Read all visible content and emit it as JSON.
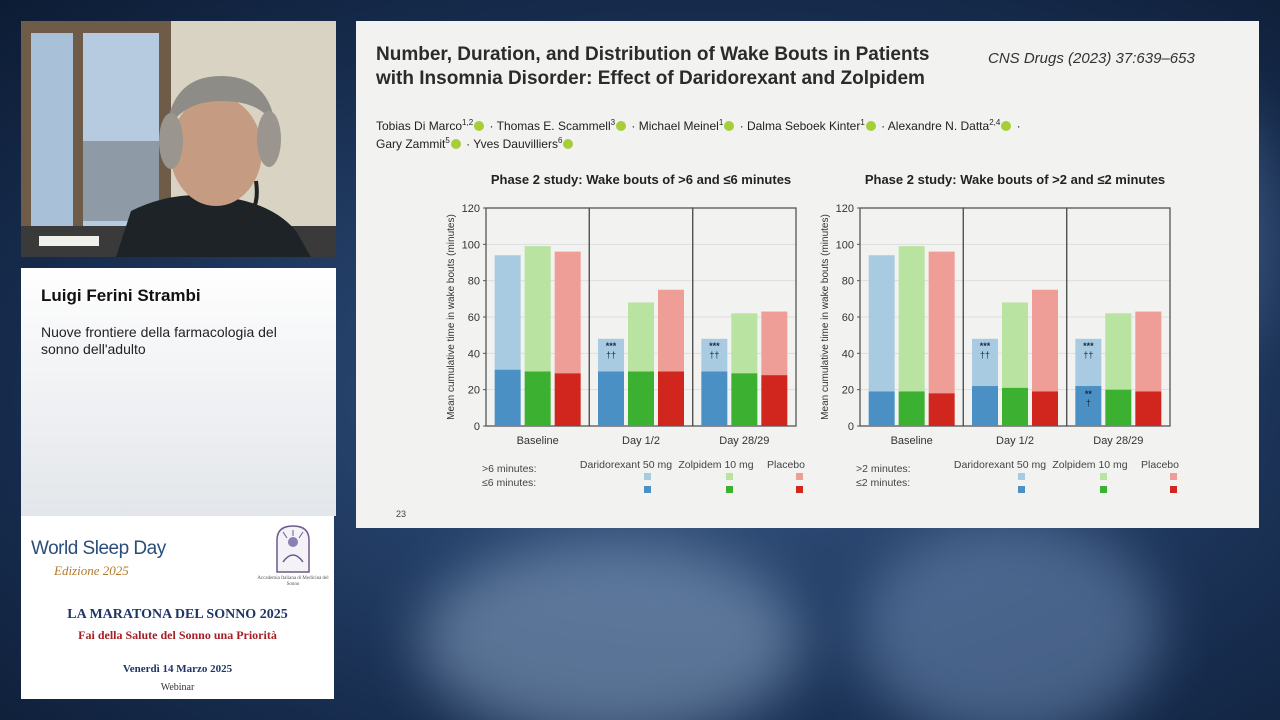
{
  "speaker": {
    "name": "Luigi Ferini Strambi",
    "talk_title": "Nuove frontiere della farmacologia del sonno dell'adulto"
  },
  "event": {
    "logo_text": "World Sleep Day",
    "edition": "Edizione 2025",
    "org_name": "Accademia Italiana di Medicina del Sonno",
    "title": "LA MARATONA DEL SONNO 2025",
    "subtitle": "Fai della Salute del Sonno una Priorità",
    "date": "Venerdì 14 Marzo 2025",
    "format": "Webinar"
  },
  "slide": {
    "title": "Number, Duration, and Distribution of Wake Bouts in Patients with Insomnia Disorder: Effect of Daridorexant and Zolpidem",
    "journal": "CNS Drugs (2023) 37:639–653",
    "authors_line1": [
      {
        "name": "Tobias Di Marco",
        "sup": "1,2"
      },
      {
        "name": "Thomas E. Scammell",
        "sup": "3"
      },
      {
        "name": "Michael Meinel",
        "sup": "1"
      },
      {
        "name": "Dalma Seboek Kinter",
        "sup": "1"
      },
      {
        "name": "Alexandre N. Datta",
        "sup": "2,4"
      }
    ],
    "authors_line2": [
      {
        "name": "Gary Zammit",
        "sup": "5"
      },
      {
        "name": "Yves Dauvilliers",
        "sup": "6"
      }
    ],
    "page_number": "23"
  },
  "colors": {
    "dari_light": "#a9cbe2",
    "dari_dark": "#4a90c4",
    "zolp_light": "#b8e3a0",
    "zolp_dark": "#3cb031",
    "plac_light": "#ef9e97",
    "plac_dark": "#d1261e"
  },
  "chart_data": [
    {
      "type": "bar",
      "title": "Phase 2 study: Wake bouts of >6 and ≤6 minutes",
      "ylabel": "Mean cumulative time in wake bouts (minutes)",
      "ylim": [
        0,
        120
      ],
      "yticks": [
        0,
        20,
        40,
        60,
        80,
        100,
        120
      ],
      "categories": [
        "Baseline",
        "Day 1/2",
        "Day 28/29"
      ],
      "groups": [
        "Daridorexant 50 mg",
        "Zolpidem 10 mg",
        "Placebo"
      ],
      "legend_rows": [
        ">6 minutes:",
        "≤6 minutes:"
      ],
      "series": [
        {
          "name": "Daridorexant 50 mg",
          "total": [
            94,
            48,
            48
          ],
          "short": [
            31,
            30,
            30
          ]
        },
        {
          "name": "Zolpidem 10 mg",
          "total": [
            99,
            68,
            62
          ],
          "short": [
            30,
            30,
            29
          ]
        },
        {
          "name": "Placebo",
          "total": [
            96,
            75,
            63
          ],
          "short": [
            29,
            30,
            28
          ]
        }
      ],
      "annotations": [
        {
          "category": "Day 1/2",
          "series": "Daridorexant 50 mg",
          "top": "***",
          "bottom": "††",
          "segment": "long"
        },
        {
          "category": "Day 28/29",
          "series": "Daridorexant 50 mg",
          "top": "***",
          "bottom": "††",
          "segment": "long"
        }
      ]
    },
    {
      "type": "bar",
      "title": "Phase 2 study: Wake bouts of >2 and ≤2 minutes",
      "ylabel": "Mean cumulative time in wake bouts (minutes)",
      "ylim": [
        0,
        120
      ],
      "yticks": [
        0,
        20,
        40,
        60,
        80,
        100,
        120
      ],
      "categories": [
        "Baseline",
        "Day 1/2",
        "Day 28/29"
      ],
      "groups": [
        "Daridorexant 50 mg",
        "Zolpidem 10 mg",
        "Placebo"
      ],
      "legend_rows": [
        ">2 minutes:",
        "≤2 minutes:"
      ],
      "series": [
        {
          "name": "Daridorexant 50 mg",
          "total": [
            94,
            48,
            48
          ],
          "short": [
            19,
            22,
            22
          ]
        },
        {
          "name": "Zolpidem 10 mg",
          "total": [
            99,
            68,
            62
          ],
          "short": [
            19,
            21,
            20
          ]
        },
        {
          "name": "Placebo",
          "total": [
            96,
            75,
            63
          ],
          "short": [
            18,
            19,
            19
          ]
        }
      ],
      "annotations": [
        {
          "category": "Day 1/2",
          "series": "Daridorexant 50 mg",
          "top": "***",
          "bottom": "††",
          "segment": "long"
        },
        {
          "category": "Day 28/29",
          "series": "Daridorexant 50 mg",
          "top": "***",
          "bottom": "††",
          "segment": "long"
        },
        {
          "category": "Day 28/29",
          "series": "Daridorexant 50 mg",
          "top": "**",
          "bottom": "†",
          "segment": "short"
        }
      ]
    }
  ]
}
